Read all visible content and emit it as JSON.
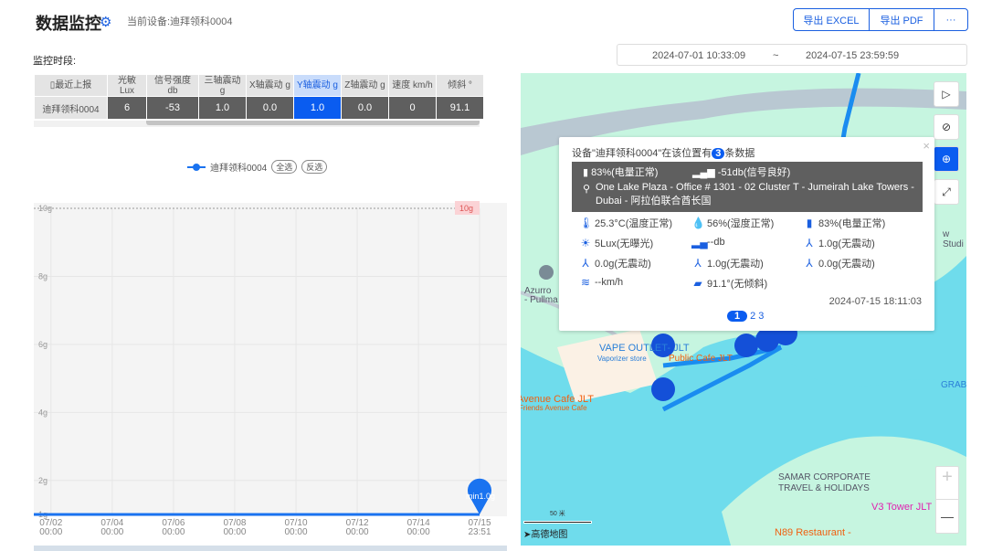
{
  "header": {
    "title": "数据监控",
    "device_label": "当前设备:迪拜领科0004",
    "export_excel": "导出 EXCEL",
    "export_pdf": "导出 PDF",
    "more": "···"
  },
  "period": {
    "label": "监控时段:",
    "start": "2024-07-01 10:33:09",
    "separator": "~",
    "end": "2024-07-15 23:59:59"
  },
  "table": {
    "headers": [
      "最近上报",
      "光敏 Lux",
      "信号强度 db",
      "三轴震动 g",
      "X轴震动 g",
      "Y轴震动 g",
      "Z轴震动 g",
      "速度 km/h",
      "倾斜 °"
    ],
    "selected_column": 5,
    "rows": [
      [
        "迪拜领科0004",
        "6",
        "-53",
        "1.0",
        "0.0",
        "1.0",
        "0.0",
        "0",
        "91.1"
      ]
    ]
  },
  "legend": {
    "series": "迪拜领科0004",
    "select_all": "全选",
    "invert": "反选"
  },
  "chart_data": {
    "type": "line",
    "x_ticks": [
      "07/02\n00:00",
      "07/04\n00:00",
      "07/06\n00:00",
      "07/08\n00:00",
      "07/10\n00:00",
      "07/12\n00:00",
      "07/14\n00:00",
      "07/15\n23:51"
    ],
    "y_ticks": [
      "1g",
      "2g",
      "4g",
      "6g",
      "8g",
      "10g"
    ],
    "ylim": [
      1,
      10
    ],
    "xlim": [
      "2024-07-01 10:33",
      "2024-07-15 23:51"
    ],
    "series": [
      {
        "name": "迪拜领科0004",
        "x": [
          "2024-07-01 10:33",
          "2024-07-15 23:51"
        ],
        "y": [
          1.0,
          1.0
        ],
        "color": "#1a73f0"
      }
    ],
    "max_label": "10g",
    "min_label": "min1.0g",
    "grid": true
  },
  "map": {
    "labels": [
      "VAPE OUTLET- JLT",
      "Vaporizer store",
      "Public Cafe JLT",
      "Avenue Cafe JLT",
      "Friends Avenue Cafe",
      "GRAB",
      "SAMAR CORPORATE",
      "TRAVEL & HOLIDAYS",
      "V3 Tower JLT",
      "N89 Restaurant -",
      "Azurro",
      "- Pullma",
      "w Studi"
    ],
    "scale": "50 米",
    "logo": "高德地图",
    "zoom_in": "+",
    "zoom_out": "—"
  },
  "popup": {
    "title_pre": "设备\"迪拜领科0004\"在该位置有",
    "count": "3",
    "title_post": "条数据",
    "battery": "83%(电量正常)",
    "signal": "-51db(信号良好)",
    "address": "One Lake Plaza - Office # 1301 - 02 Cluster T - Jumeirah Lake Towers - Dubai - 阿拉伯联合酋长国",
    "items": [
      "25.3°C(温度正常)",
      "56%(湿度正常)",
      "83%(电量正常)",
      "5Lux(无曝光)",
      "--db",
      "1.0g(无震动)",
      "0.0g(无震动)",
      "1.0g(无震动)",
      "0.0g(无震动)",
      "--km/h",
      "91.1°(无倾斜)"
    ],
    "time": "2024-07-15 18:11:03",
    "pages": [
      "1",
      "2",
      "3"
    ],
    "close": "×"
  }
}
